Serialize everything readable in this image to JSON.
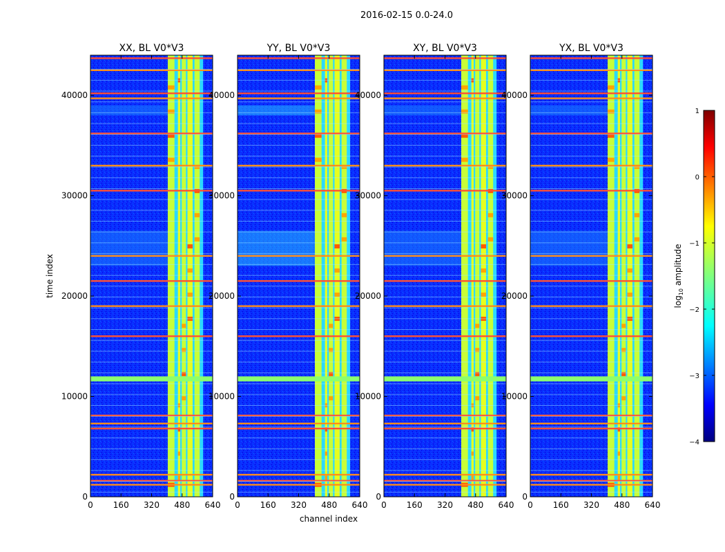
{
  "chart_data": {
    "type": "heatmap",
    "suptitle": "2016-02-15 0.0-24.0",
    "xlabel": "channel index",
    "ylabel": "time index",
    "xlim": [
      0,
      640
    ],
    "ylim": [
      0,
      44000
    ],
    "xticks": [
      0,
      160,
      320,
      480,
      640
    ],
    "xtick_labels": [
      "0",
      "160",
      "320",
      "480",
      "640"
    ],
    "yticks": [
      0,
      10000,
      20000,
      30000,
      40000
    ],
    "ytick_labels": [
      "0",
      "10000",
      "20000",
      "30000",
      "40000"
    ],
    "panels": [
      {
        "title": "XX, BL V0*V3"
      },
      {
        "title": "YY, BL V0*V3"
      },
      {
        "title": "XY, BL V0*V3"
      },
      {
        "title": "YX, BL V0*V3"
      }
    ],
    "colorbar": {
      "label": "log10 amplitude",
      "label_base": "log",
      "label_sub": "10",
      "label_rest": " amplitude",
      "range": [
        -4,
        1
      ],
      "ticks": [
        1,
        0,
        -1,
        -2,
        -3,
        -4
      ],
      "tick_labels": [
        "1",
        "0",
        "−1",
        "−2",
        "−3",
        "−4"
      ],
      "colormap": "jet"
    },
    "features": {
      "bright_channel_band": [
        405,
        590
      ],
      "band_columns": [
        [
          405,
          440
        ],
        [
          458,
          470
        ],
        [
          478,
          500
        ],
        [
          508,
          535
        ],
        [
          545,
          572
        ]
      ],
      "flagged_rows": [
        1200,
        1600,
        2200,
        6800,
        7300,
        8100,
        11900,
        16000,
        19000,
        21500,
        24000,
        30500,
        33000,
        36200,
        39700,
        40200,
        42500,
        43700
      ],
      "green_band_rows": [
        11500,
        12000
      ],
      "elevated_row_bands": [
        [
          23000,
          26500
        ],
        [
          38000,
          39000
        ]
      ]
    }
  }
}
